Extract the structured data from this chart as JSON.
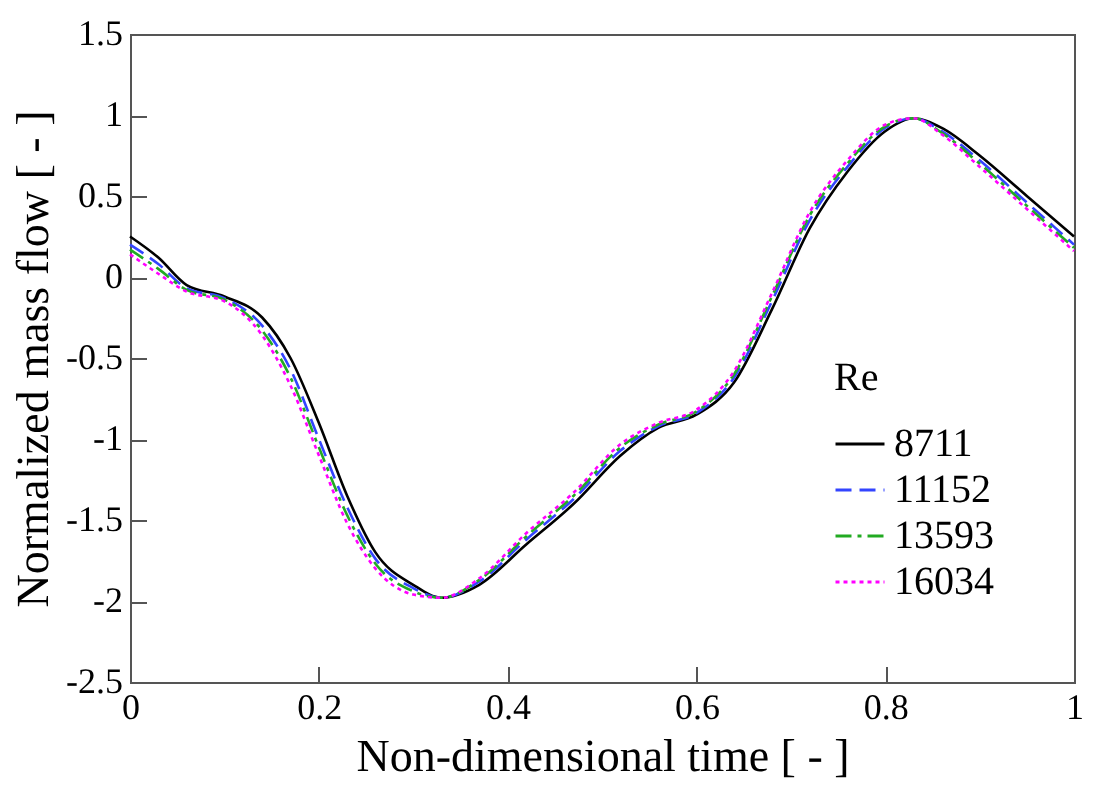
{
  "chart_data": {
    "type": "line",
    "xlabel": "Non-dimensional time [ - ]",
    "ylabel": "Normalized mass flow [ - ]",
    "legend_title": "Re",
    "legend": "bottom right",
    "grid": false,
    "x": [
      0,
      0.03,
      0.06,
      0.1,
      0.14,
      0.17,
      0.2,
      0.23,
      0.26,
      0.3,
      0.33,
      0.37,
      0.42,
      0.47,
      0.52,
      0.56,
      0.6,
      0.64,
      0.68,
      0.72,
      0.76,
      0.8,
      0.83,
      0.86,
      0.9,
      0.95,
      1
    ],
    "xlim": [
      0,
      1
    ],
    "xticks": [
      0,
      0.2,
      0.4,
      0.6,
      0.8,
      1
    ],
    "ylim": [
      -2.5,
      1.5
    ],
    "yticks": [
      -2.5,
      -2,
      -1.5,
      -1,
      -0.5,
      0,
      0.5,
      1,
      1.5
    ],
    "series": [
      {
        "name": "8711",
        "color": "#000000",
        "line_style": "solid",
        "values": [
          0.25,
          0.12,
          -0.05,
          -0.12,
          -0.25,
          -0.5,
          -0.9,
          -1.35,
          -1.7,
          -1.9,
          -1.98,
          -1.9,
          -1.65,
          -1.4,
          -1.1,
          -0.93,
          -0.85,
          -0.65,
          -0.2,
          0.3,
          0.65,
          0.9,
          0.98,
          0.92,
          0.75,
          0.5,
          0.25
        ]
      },
      {
        "name": "11152",
        "color": "#3344ff",
        "line_style": "dashed",
        "values": [
          0.2,
          0.08,
          -0.07,
          -0.13,
          -0.3,
          -0.57,
          -1.0,
          -1.42,
          -1.74,
          -1.92,
          -1.98,
          -1.88,
          -1.62,
          -1.37,
          -1.07,
          -0.92,
          -0.84,
          -0.62,
          -0.15,
          0.35,
          0.68,
          0.92,
          0.98,
          0.9,
          0.72,
          0.46,
          0.2
        ]
      },
      {
        "name": "13593",
        "color": "#22aa22",
        "line_style": "dashdot",
        "values": [
          0.17,
          0.05,
          -0.08,
          -0.14,
          -0.33,
          -0.62,
          -1.05,
          -1.47,
          -1.77,
          -1.94,
          -1.98,
          -1.87,
          -1.6,
          -1.35,
          -1.05,
          -0.91,
          -0.83,
          -0.6,
          -0.12,
          0.38,
          0.7,
          0.93,
          0.98,
          0.89,
          0.7,
          0.44,
          0.18
        ]
      },
      {
        "name": "16034",
        "color": "#ff00ff",
        "line_style": "dotted",
        "values": [
          0.14,
          0.02,
          -0.09,
          -0.15,
          -0.36,
          -0.67,
          -1.1,
          -1.52,
          -1.8,
          -1.96,
          -1.98,
          -1.86,
          -1.58,
          -1.33,
          -1.03,
          -0.9,
          -0.82,
          -0.58,
          -0.1,
          0.4,
          0.72,
          0.94,
          0.98,
          0.88,
          0.68,
          0.42,
          0.16
        ]
      }
    ]
  }
}
